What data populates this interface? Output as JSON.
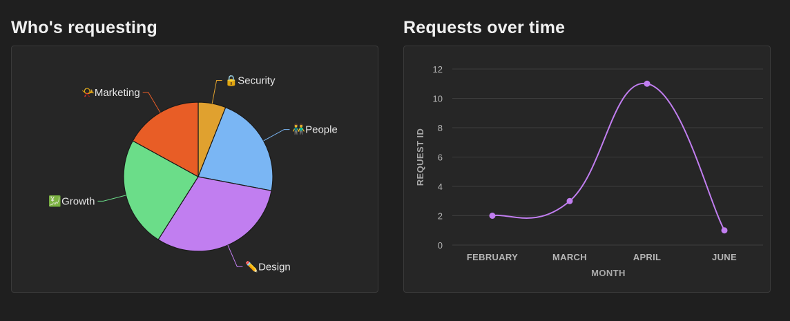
{
  "pie_panel": {
    "title": "Who's requesting"
  },
  "line_panel": {
    "title": "Requests over time"
  },
  "chart_data": [
    {
      "type": "pie",
      "title": "Who's requesting",
      "slices": [
        {
          "label": "Security",
          "emoji": "🔒",
          "value": 6,
          "color": "#e0a12f"
        },
        {
          "label": "People",
          "emoji": "👬",
          "value": 22,
          "color": "#7ab6f4"
        },
        {
          "label": "Design",
          "emoji": "✏️",
          "value": 31,
          "color": "#c17ef0"
        },
        {
          "label": "Growth",
          "emoji": "💹",
          "value": 24,
          "color": "#6bdd89"
        },
        {
          "label": "Marketing",
          "emoji": "📯",
          "value": 17,
          "color": "#e85d26"
        }
      ]
    },
    {
      "type": "line",
      "title": "Requests over time",
      "xlabel": "MONTH",
      "ylabel": "REQUEST ID",
      "categories": [
        "FEBRUARY",
        "MARCH",
        "APRIL",
        "JUNE"
      ],
      "series": [
        {
          "values": [
            2,
            3,
            11,
            1
          ],
          "color": "#c17ef0"
        }
      ],
      "ylim": [
        0,
        12
      ],
      "yticks": [
        0,
        2,
        4,
        6,
        8,
        10,
        12
      ],
      "grid": true
    }
  ]
}
